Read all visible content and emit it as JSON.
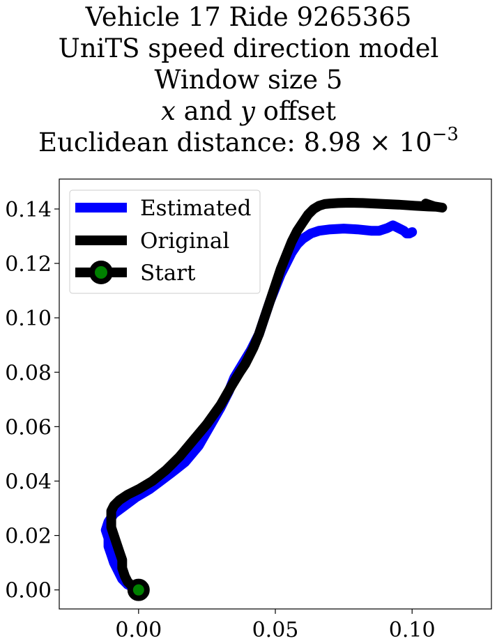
{
  "title": {
    "line1": "Vehicle 17 Ride 9265365",
    "line2": "UniTS speed direction model",
    "line3": "Window size 5",
    "line4_x": "x",
    "line4_and": " and ",
    "line4_y": "y",
    "line4_rest": " offset",
    "line5_prefix": "Euclidean distance: 8.98",
    "line5_times": " × 10",
    "line5_exp": "−3"
  },
  "chart_data": {
    "type": "line",
    "xlim": [
      -0.029,
      0.129
    ],
    "ylim": [
      -0.007,
      0.151
    ],
    "xticks": [
      0.0,
      0.05,
      0.1
    ],
    "xtick_labels": [
      "0.00",
      "0.05",
      "0.10"
    ],
    "yticks": [
      0.0,
      0.02,
      0.04,
      0.06,
      0.08,
      0.1,
      0.12,
      0.14
    ],
    "ytick_labels": [
      "0.00",
      "0.02",
      "0.04",
      "0.06",
      "0.08",
      "0.10",
      "0.12",
      "0.14"
    ],
    "grid": false,
    "legend_position": "upper-left",
    "series": [
      {
        "name": "Estimated",
        "color": "#0000ff",
        "x": [
          0.0,
          -0.004,
          -0.006,
          -0.007,
          -0.008,
          -0.009,
          -0.01,
          -0.011,
          -0.011,
          -0.012,
          -0.011,
          -0.009,
          -0.005,
          -0.001,
          0.004,
          0.008,
          0.012,
          0.017,
          0.022,
          0.026,
          0.03,
          0.033,
          0.035,
          0.038,
          0.041,
          0.044,
          0.046,
          0.048,
          0.05,
          0.052,
          0.054,
          0.056,
          0.058,
          0.06,
          0.063,
          0.066,
          0.07,
          0.075,
          0.08,
          0.085,
          0.088,
          0.091,
          0.093,
          0.095,
          0.097,
          0.098,
          0.099,
          0.1
        ],
        "y": [
          0.0,
          0.002,
          0.004,
          0.006,
          0.008,
          0.01,
          0.013,
          0.016,
          0.019,
          0.022,
          0.025,
          0.028,
          0.031,
          0.034,
          0.037,
          0.04,
          0.043,
          0.047,
          0.053,
          0.06,
          0.067,
          0.073,
          0.078,
          0.083,
          0.088,
          0.094,
          0.1,
          0.106,
          0.111,
          0.116,
          0.12,
          0.124,
          0.127,
          0.129,
          0.131,
          0.132,
          0.1325,
          0.1328,
          0.1325,
          0.132,
          0.132,
          0.133,
          0.134,
          0.133,
          0.132,
          0.131,
          0.131,
          0.1315
        ]
      },
      {
        "name": "Original",
        "color": "#000000",
        "x": [
          0.0,
          -0.002,
          -0.004,
          -0.005,
          -0.006,
          -0.006,
          -0.007,
          -0.008,
          -0.009,
          -0.01,
          -0.01,
          -0.01,
          -0.009,
          -0.007,
          -0.004,
          0.0,
          0.005,
          0.01,
          0.015,
          0.02,
          0.025,
          0.03,
          0.034,
          0.037,
          0.039,
          0.04,
          0.042,
          0.044,
          0.046,
          0.048,
          0.05,
          0.052,
          0.054,
          0.056,
          0.058,
          0.06,
          0.062,
          0.064,
          0.066,
          0.068,
          0.07,
          0.073,
          0.077,
          0.082,
          0.088,
          0.095,
          0.101,
          0.106,
          0.109,
          0.111,
          0.108,
          0.105
        ],
        "y": [
          0.0,
          0.001,
          0.003,
          0.005,
          0.008,
          0.011,
          0.014,
          0.017,
          0.02,
          0.023,
          0.026,
          0.029,
          0.031,
          0.033,
          0.035,
          0.037,
          0.04,
          0.044,
          0.049,
          0.055,
          0.061,
          0.068,
          0.075,
          0.08,
          0.083,
          0.085,
          0.089,
          0.094,
          0.1,
          0.106,
          0.112,
          0.118,
          0.123,
          0.128,
          0.132,
          0.135,
          0.138,
          0.14,
          0.1412,
          0.1418,
          0.142,
          0.1422,
          0.1423,
          0.1422,
          0.1419,
          0.1416,
          0.1412,
          0.1409,
          0.1408,
          0.1405,
          0.141,
          0.142
        ]
      }
    ],
    "start_point": {
      "name": "Start",
      "x": 0.0,
      "y": 0.0,
      "edge_color": "#000000",
      "fill_color": "#008000"
    }
  }
}
